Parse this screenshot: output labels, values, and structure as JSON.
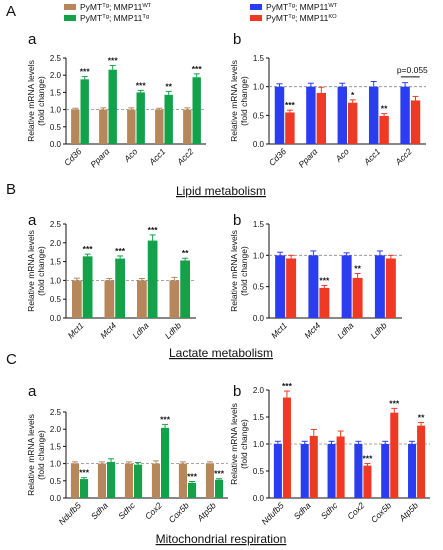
{
  "figure": {
    "section_labels": [
      "A",
      "B",
      "C"
    ],
    "panel_labels": [
      "a",
      "b",
      "a",
      "b",
      "a",
      "b"
    ],
    "section_titles": [
      "Lipid metabolism",
      "Lactate metabolism",
      "Mitochondrial respiration"
    ],
    "legends": {
      "left": [
        "PyMT^Tg; MMP11^WT",
        "PyMT^Tg; MMP11^Tg"
      ],
      "right": [
        "PyMT^Tg; MMP11^WT",
        "PyMT^Tg; MMP11^KO"
      ]
    },
    "colors": {
      "wt_left": "#b5875a",
      "tg": "#13a14a",
      "wt_right": "#2b3df0",
      "ko": "#ee3a24"
    }
  },
  "chart_data": [
    {
      "type": "bar",
      "panel": "A-a",
      "categories": [
        "Cd36",
        "Pparα",
        "Aco",
        "Acc1",
        "Acc2"
      ],
      "ylabel": "Relative mRNA levels\n(fold change)",
      "ylim": [
        0,
        2.5
      ],
      "yticks": [
        "0.0",
        "0.5",
        "1.0",
        "1.5",
        "2.0",
        "2.5"
      ],
      "series": [
        {
          "name": "PyMT^Tg; MMP11^WT",
          "values": [
            1.0,
            1.0,
            1.0,
            1.0,
            1.0
          ],
          "errors": [
            0.04,
            0.05,
            0.05,
            0.04,
            0.05
          ]
        },
        {
          "name": "PyMT^Tg; MMP11^Tg",
          "values": [
            1.88,
            2.16,
            1.5,
            1.43,
            1.94
          ],
          "errors": [
            0.08,
            0.12,
            0.06,
            0.1,
            0.1
          ]
        }
      ],
      "significance": [
        "***",
        "***",
        "***",
        "**",
        "***"
      ]
    },
    {
      "type": "bar",
      "panel": "A-b",
      "categories": [
        "Cd36",
        "Pparα",
        "Aco",
        "Acc1",
        "Acc2"
      ],
      "ylabel": "Relative mRNA levels\n(fold change)",
      "ylim": [
        0,
        1.5
      ],
      "yticks": [
        "0.0",
        "0.5",
        "1.0",
        "1.5"
      ],
      "series": [
        {
          "name": "PyMT^Tg; MMP11^WT",
          "values": [
            1.0,
            1.0,
            1.0,
            1.0,
            1.0
          ],
          "errors": [
            0.05,
            0.06,
            0.06,
            0.09,
            0.07
          ]
        },
        {
          "name": "PyMT^Tg; MMP11^KO",
          "values": [
            0.55,
            0.89,
            0.72,
            0.49,
            0.76
          ],
          "errors": [
            0.04,
            0.1,
            0.05,
            0.04,
            0.07
          ]
        }
      ],
      "significance": [
        "***",
        "",
        "*",
        "**",
        ""
      ],
      "annotation": "p=0.055"
    },
    {
      "type": "bar",
      "panel": "B-a",
      "categories": [
        "Mct1",
        "Mct4",
        "Ldha",
        "Ldhb"
      ],
      "ylabel": "Relative mRNA levels\n(fold change)",
      "ylim": [
        0,
        2.5
      ],
      "yticks": [
        "0.0",
        "0.5",
        "1.0",
        "1.5",
        "2.0",
        "2.5"
      ],
      "series": [
        {
          "name": "PyMT^Tg; MMP11^WT",
          "values": [
            1.0,
            1.0,
            1.0,
            1.0
          ],
          "errors": [
            0.06,
            0.05,
            0.05,
            0.08
          ]
        },
        {
          "name": "PyMT^Tg; MMP11^Tg",
          "values": [
            1.64,
            1.58,
            2.06,
            1.53
          ],
          "errors": [
            0.06,
            0.07,
            0.15,
            0.06
          ]
        }
      ],
      "significance": [
        "***",
        "***",
        "***",
        "**"
      ]
    },
    {
      "type": "bar",
      "panel": "B-b",
      "categories": [
        "Mct1",
        "Mct4",
        "Ldha",
        "Ldhb"
      ],
      "ylabel": "Relative mRNA levels\n(fold change)",
      "ylim": [
        0,
        1.5
      ],
      "yticks": [
        "0.0",
        "0.5",
        "1.0",
        "1.5"
      ],
      "series": [
        {
          "name": "PyMT^Tg; MMP11^WT",
          "values": [
            1.0,
            1.0,
            1.0,
            1.0
          ],
          "errors": [
            0.05,
            0.07,
            0.04,
            0.07
          ]
        },
        {
          "name": "PyMT^Tg; MMP11^KO",
          "values": [
            0.95,
            0.48,
            0.64,
            0.95
          ],
          "errors": [
            0.05,
            0.04,
            0.07,
            0.05
          ]
        }
      ],
      "significance": [
        "",
        "***",
        "**",
        ""
      ]
    },
    {
      "type": "bar",
      "panel": "C-a",
      "categories": [
        "Ndufb5",
        "Sdha",
        "Sdhc",
        "Cox2",
        "Cox5b",
        "Atp5b"
      ],
      "ylabel": "Relative mRNA levels\n(fold change)",
      "ylim": [
        0,
        2.5
      ],
      "yticks": [
        "0.0",
        "0.5",
        "1.0",
        "1.5",
        "2.0",
        "2.5"
      ],
      "series": [
        {
          "name": "PyMT^Tg; MMP11^WT",
          "values": [
            1.0,
            1.0,
            1.0,
            1.0,
            1.0,
            1.0
          ],
          "errors": [
            0.05,
            0.05,
            0.05,
            0.08,
            0.05,
            0.05
          ]
        },
        {
          "name": "PyMT^Tg; MMP11^Tg",
          "values": [
            0.55,
            1.05,
            0.97,
            2.04,
            0.44,
            0.53
          ],
          "errors": [
            0.04,
            0.09,
            0.06,
            0.1,
            0.04,
            0.03
          ]
        }
      ],
      "significance": [
        "***",
        "",
        "",
        "***",
        "***",
        "***"
      ]
    },
    {
      "type": "bar",
      "panel": "C-b",
      "categories": [
        "Ndufb5",
        "Sdha",
        "Sdhc",
        "Cox2",
        "Cox5b",
        "Atp5b"
      ],
      "ylabel": "Relative mRNA levels\n(fold change)",
      "ylim": [
        0,
        2.0
      ],
      "yticks": [
        "0.0",
        "0.5",
        "1.0",
        "1.5",
        "2.0"
      ],
      "series": [
        {
          "name": "PyMT^Tg; MMP11^WT",
          "values": [
            1.0,
            1.0,
            1.0,
            1.0,
            1.0,
            1.0
          ],
          "errors": [
            0.05,
            0.05,
            0.05,
            0.05,
            0.05,
            0.05
          ]
        },
        {
          "name": "PyMT^Tg; MMP11^KO",
          "values": [
            1.86,
            1.15,
            1.14,
            0.6,
            1.58,
            1.34
          ],
          "errors": [
            0.12,
            0.12,
            0.1,
            0.04,
            0.08,
            0.06
          ]
        }
      ],
      "significance": [
        "***",
        "",
        "",
        "***",
        "***",
        "**"
      ]
    }
  ]
}
